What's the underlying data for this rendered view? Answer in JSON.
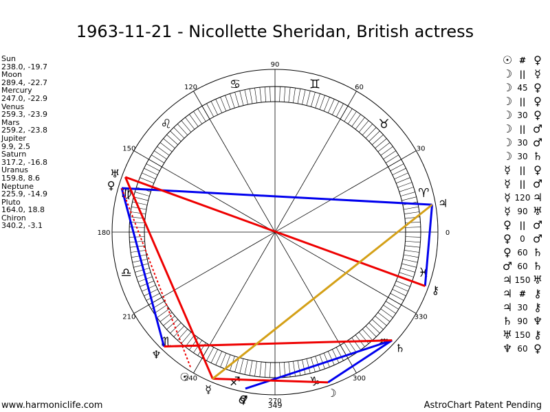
{
  "title": "1963-11-21 - Nicollette Sheridan, British actress",
  "footer": {
    "left": "www.harmoniclife.com",
    "right": "AstroChart Patent Pending"
  },
  "positions": [
    {
      "name": "Sun",
      "value": "238.0, -19.7"
    },
    {
      "name": "Moon",
      "value": "289.4, -22.7"
    },
    {
      "name": "Mercury",
      "value": "247.0, -22.9"
    },
    {
      "name": "Venus",
      "value": "259.3, -23.9"
    },
    {
      "name": "Mars",
      "value": "259.2, -23.8"
    },
    {
      "name": "Jupiter",
      "value": "9.9, 2.5"
    },
    {
      "name": "Saturn",
      "value": "317.2, -16.8"
    },
    {
      "name": "Uranus",
      "value": "159.8, 8.6"
    },
    {
      "name": "Neptune",
      "value": "225.9, -14.9"
    },
    {
      "name": "Pluto",
      "value": "164.0, 18.8"
    },
    {
      "name": "Chiron",
      "value": "340.2, -3.1"
    }
  ],
  "aspects": [
    {
      "p1": "☉",
      "sym": "#",
      "p2": "♀"
    },
    {
      "p1": "☽",
      "sym": "||",
      "p2": "☿"
    },
    {
      "p1": "☽",
      "sym": "45",
      "p2": "♀"
    },
    {
      "p1": "☽",
      "sym": "||",
      "p2": "♀"
    },
    {
      "p1": "☽",
      "sym": "30",
      "p2": "♀"
    },
    {
      "p1": "☽",
      "sym": "||",
      "p2": "♂"
    },
    {
      "p1": "☽",
      "sym": "30",
      "p2": "♂"
    },
    {
      "p1": "☽",
      "sym": "30",
      "p2": "♄"
    },
    {
      "p1": "☿",
      "sym": "||",
      "p2": "♀"
    },
    {
      "p1": "☿",
      "sym": "||",
      "p2": "♂"
    },
    {
      "p1": "☿",
      "sym": "120",
      "p2": "♃"
    },
    {
      "p1": "☿",
      "sym": "90",
      "p2": "♅"
    },
    {
      "p1": "♀",
      "sym": "||",
      "p2": "♂"
    },
    {
      "p1": "♀",
      "sym": "0",
      "p2": "♂"
    },
    {
      "p1": "♀",
      "sym": "60",
      "p2": "♄"
    },
    {
      "p1": "♂",
      "sym": "60",
      "p2": "♄"
    },
    {
      "p1": "♃",
      "sym": "150",
      "p2": "♅"
    },
    {
      "p1": "♃",
      "sym": "#",
      "p2": "⚷"
    },
    {
      "p1": "♃",
      "sym": "30",
      "p2": "⚷"
    },
    {
      "p1": "♄",
      "sym": "90",
      "p2": "♆"
    },
    {
      "p1": "♅",
      "sym": "150",
      "p2": "⚷"
    },
    {
      "p1": "♆",
      "sym": "60",
      "p2": "♀"
    }
  ],
  "chart_data": {
    "type": "other",
    "title": "1963-11-21 - Nicollette Sheridan, British actress",
    "degree_labels": [
      "0",
      "30",
      "60",
      "90",
      "120",
      "150",
      "180",
      "210",
      "240",
      "270",
      "300",
      "330"
    ],
    "extra_marker_label": "349",
    "zodiac_signs": [
      "♈",
      "♉",
      "♊",
      "♋",
      "♌",
      "♍",
      "♎",
      "♏",
      "♐",
      "♑",
      "♒",
      "♓"
    ],
    "planets": [
      {
        "name": "Sun",
        "glyph": "☉",
        "lon": 238.0
      },
      {
        "name": "Moon",
        "glyph": "☽",
        "lon": 289.4
      },
      {
        "name": "Mercury",
        "glyph": "☿",
        "lon": 247.0
      },
      {
        "name": "Venus",
        "glyph": "♀",
        "lon": 259.3
      },
      {
        "name": "Mars",
        "glyph": "♂",
        "lon": 259.2
      },
      {
        "name": "Jupiter",
        "glyph": "♃",
        "lon": 9.9
      },
      {
        "name": "Saturn",
        "glyph": "♄",
        "lon": 317.2
      },
      {
        "name": "Uranus",
        "glyph": "♅",
        "lon": 159.8
      },
      {
        "name": "Neptune",
        "glyph": "♆",
        "lon": 225.9
      },
      {
        "name": "Pluto",
        "glyph": "♀",
        "lon": 164.0
      },
      {
        "name": "Chiron",
        "glyph": "⚷",
        "lon": 340.2
      }
    ],
    "aspect_lines": [
      {
        "from": "Jupiter",
        "to": "Pluto",
        "color": "#0000ee",
        "style": "solid"
      },
      {
        "from": "Jupiter",
        "to": "Chiron",
        "color": "#0000ee",
        "style": "solid"
      },
      {
        "from": "Pluto",
        "to": "Neptune",
        "color": "#0000ee",
        "style": "solid"
      },
      {
        "from": "Saturn",
        "to": "Moon",
        "color": "#0000ee",
        "style": "solid"
      },
      {
        "from": "Saturn",
        "to": "Venus",
        "color": "#0000ee",
        "style": "solid"
      },
      {
        "from": "Uranus",
        "to": "Chiron",
        "color": "#ee0000",
        "style": "solid"
      },
      {
        "from": "Uranus",
        "to": "Mercury",
        "color": "#ee0000",
        "style": "solid"
      },
      {
        "from": "Neptune",
        "to": "Saturn",
        "color": "#ee0000",
        "style": "solid"
      },
      {
        "from": "Mercury",
        "to": "Moon",
        "color": "#ee0000",
        "style": "solid"
      },
      {
        "from": "Pluto",
        "to": "Sun",
        "color": "#ee0000",
        "style": "dotted"
      },
      {
        "from": "Jupiter",
        "to": "Mercury",
        "color": "#d4a017",
        "style": "solid"
      }
    ],
    "colors": {
      "hard_aspect": "#ee0000",
      "soft_aspect": "#0000ee",
      "trine": "#d4a017"
    }
  }
}
